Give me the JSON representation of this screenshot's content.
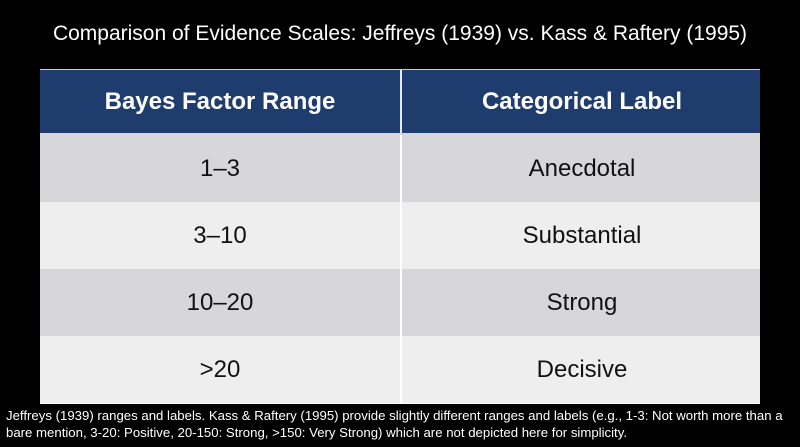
{
  "title": "Comparison of Evidence Scales: Jeffreys (1939) vs. Kass & Raftery (1995)",
  "table": {
    "headers": [
      "Bayes Factor Range",
      "Categorical Label"
    ],
    "rows": [
      [
        "1–3",
        "Anecdotal"
      ],
      [
        "3–10",
        "Substantial"
      ],
      [
        "10–20",
        "Strong"
      ],
      [
        ">20",
        "Decisive"
      ]
    ]
  },
  "footnote": "Jeffreys (1939) ranges and labels. Kass & Raftery (1995) provide slightly different ranges and labels (e.g., 1-3: Not worth more than a bare mention, 3-20: Positive, 20-150: Strong, >150: Very Strong) which are not depicted here for simplicity.",
  "colors": {
    "background": "#000000",
    "header_bg": "#1f3c6e",
    "row_odd": "#d7d7d9",
    "row_even": "#eeeeef"
  }
}
